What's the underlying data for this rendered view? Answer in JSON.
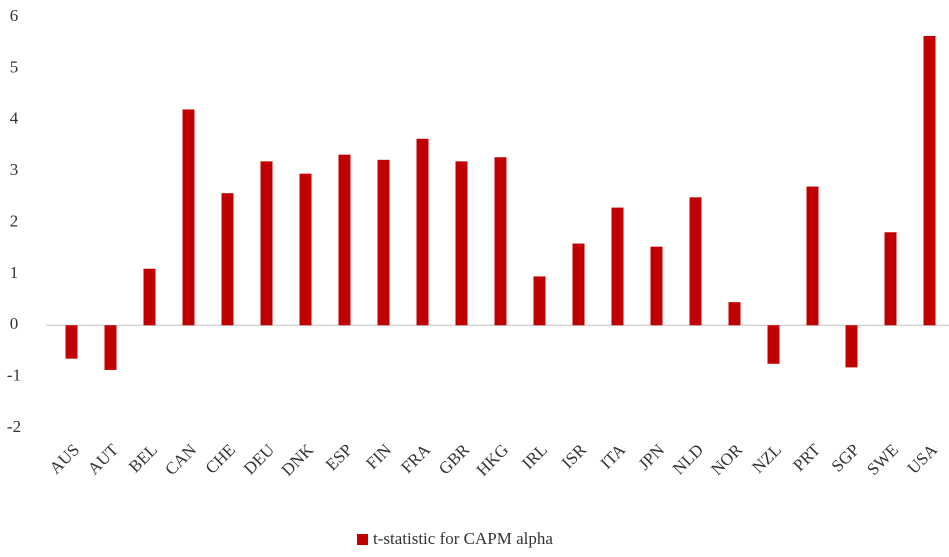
{
  "chart_data": {
    "type": "bar",
    "categories": [
      "AUS",
      "AUT",
      "BEL",
      "CAN",
      "CHE",
      "DEU",
      "DNK",
      "ESP",
      "FIN",
      "FRA",
      "GBR",
      "HKG",
      "IRL",
      "ISR",
      "ITA",
      "JPN",
      "NLD",
      "NOR",
      "NZL",
      "PRT",
      "SGP",
      "SWE",
      "USA"
    ],
    "series": [
      {
        "name": "t-statistic for CAPM alpha",
        "color": "#c00000",
        "values": [
          -0.65,
          -0.87,
          1.1,
          4.2,
          2.57,
          3.19,
          2.95,
          3.32,
          3.22,
          3.63,
          3.19,
          3.27,
          0.95,
          1.59,
          2.29,
          1.53,
          2.49,
          0.45,
          -0.75,
          2.7,
          -0.82,
          1.81,
          5.63
        ]
      }
    ],
    "ylim": [
      -2,
      6
    ],
    "yticks": [
      -2,
      -1,
      0,
      1,
      2,
      3,
      4,
      5,
      6
    ],
    "grid": false,
    "legend": "bottom"
  }
}
